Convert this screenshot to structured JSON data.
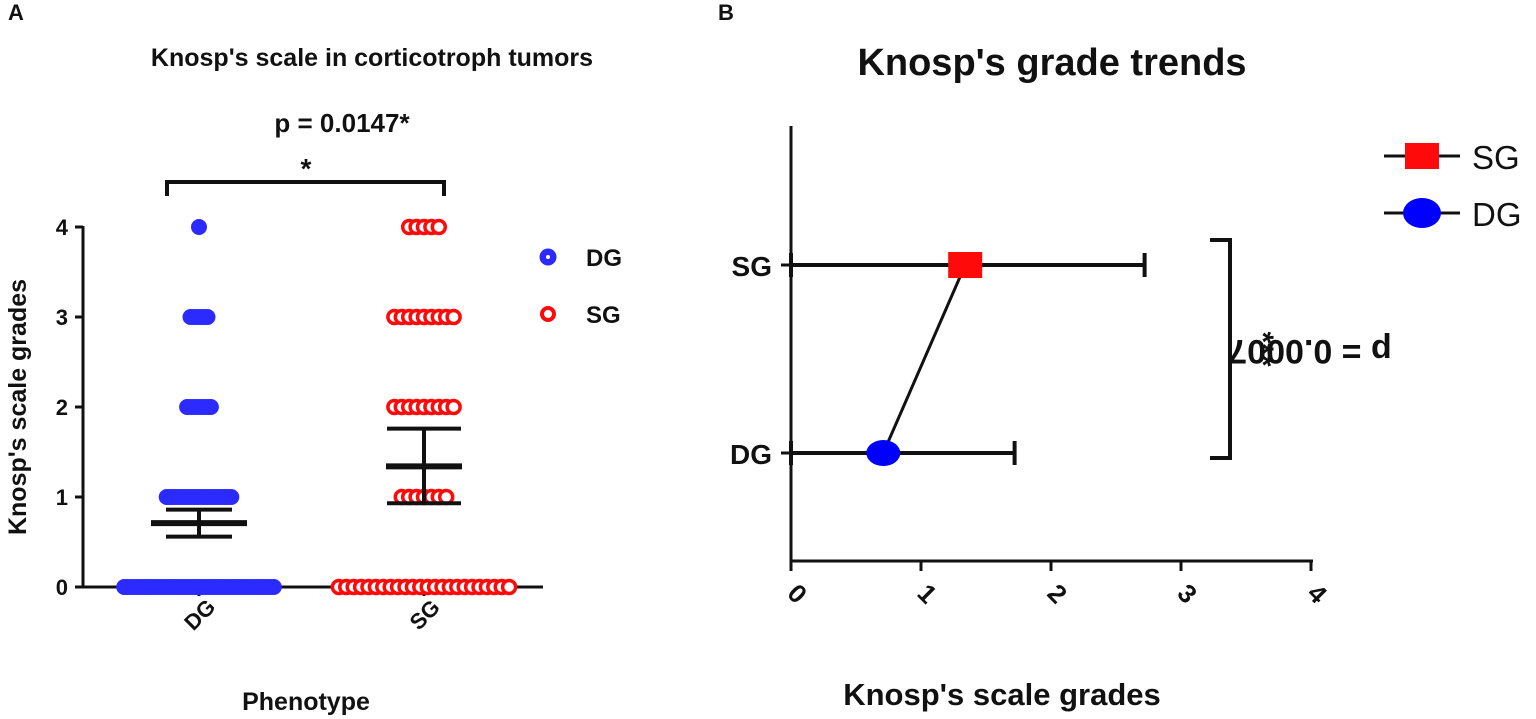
{
  "panels": {
    "a": {
      "letter": "A"
    },
    "b": {
      "letter": "B"
    }
  },
  "colors": {
    "dg": "#2b2bff",
    "sg": "#ff0a0a",
    "axis": "#111111"
  },
  "chart_data": [
    {
      "type": "scatter",
      "title": "Knosp's scale in corticotroph tumors",
      "subtitle": "p = 0.0147*",
      "significance": "*",
      "xlabel": "Phenotype",
      "ylabel": "Knosp's scale grades",
      "categories": [
        "DG",
        "SG"
      ],
      "yticks": [
        0,
        1,
        2,
        3,
        4
      ],
      "ylim": [
        0,
        4
      ],
      "legend": {
        "position": "right",
        "entries": [
          "DG",
          "SG"
        ]
      },
      "series": [
        {
          "name": "DG",
          "color": "#2b2bff",
          "marker": "filled-circle",
          "points": [
            {
              "y": 0,
              "count": 45
            },
            {
              "y": 1,
              "count": 20
            },
            {
              "y": 2,
              "count": 8
            },
            {
              "y": 3,
              "count": 6
            },
            {
              "y": 4,
              "count": 1
            }
          ],
          "mean": 0.71,
          "error_low": 0.56,
          "error_high": 0.86
        },
        {
          "name": "SG",
          "color": "#ff0a0a",
          "marker": "open-circle",
          "points": [
            {
              "y": 0,
              "count": 24
            },
            {
              "y": 1,
              "count": 7
            },
            {
              "y": 2,
              "count": 9
            },
            {
              "y": 3,
              "count": 9
            },
            {
              "y": 4,
              "count": 5
            }
          ],
          "mean": 1.34,
          "error_low": 0.93,
          "error_high": 1.76
        }
      ]
    },
    {
      "type": "scatter",
      "orientation": "horizontal",
      "title": "Knosp's grade trends",
      "xlabel": "Knosp's scale grades",
      "ylabel": "",
      "categories": [
        "SG",
        "DG"
      ],
      "xticks": [
        0,
        1,
        2,
        3,
        4
      ],
      "xlim": [
        0,
        4
      ],
      "annotation": {
        "stars": "***",
        "p_value": "p = 0.0007"
      },
      "legend": {
        "position": "top-right",
        "entries": [
          "SG",
          "DG"
        ]
      },
      "series": [
        {
          "name": "SG",
          "color": "#ff0a0a",
          "marker": "square",
          "value": 1.34,
          "error_low": 0,
          "error_high": 2.72
        },
        {
          "name": "DG",
          "color": "#2b2bff",
          "marker": "circle",
          "value": 0.71,
          "error_low": 0,
          "error_high": 1.72
        }
      ]
    }
  ]
}
